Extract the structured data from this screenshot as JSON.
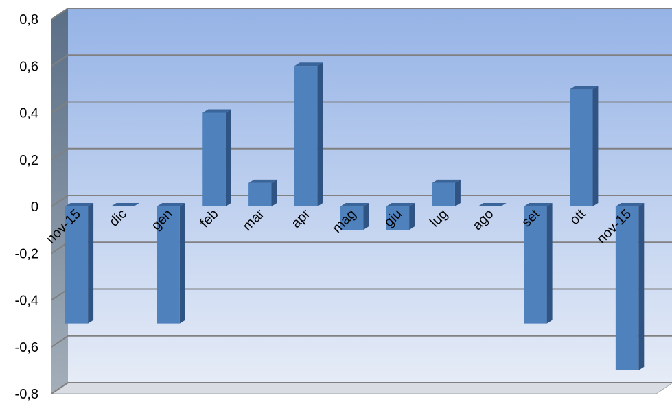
{
  "chart_data": {
    "type": "bar",
    "title": "",
    "xlabel": "",
    "ylabel": "",
    "categories": [
      "nov-15",
      "dic",
      "gen",
      "feb",
      "mar",
      "apr",
      "mag",
      "giu",
      "lug",
      "ago",
      "set",
      "ott",
      "nov-15"
    ],
    "values": [
      -0.5,
      0,
      -0.5,
      0.4,
      0.1,
      0.6,
      -0.1,
      -0.1,
      0.1,
      0,
      -0.5,
      0.5,
      -0.7
    ],
    "ylim": [
      -0.8,
      0.8
    ],
    "yticks": [
      "0,8",
      "0,6",
      "0,4",
      "0,2",
      "0",
      "-0,2",
      "-0,4",
      "-0,6",
      "-0,8"
    ],
    "ytick_values": [
      0.8,
      0.6,
      0.4,
      0.2,
      0,
      -0.2,
      -0.4,
      -0.6,
      -0.8
    ],
    "grid": true,
    "legend": "none",
    "style": "3d-column",
    "colors": {
      "bar_front": "#4f81bd",
      "bar_side": "#2f5383",
      "bar_top": "#3a659b",
      "wall_top": "#95b3e6",
      "wall_bottom": "#e6ecf7",
      "side_wall": "#7f8c99",
      "floor": "#d9dde3",
      "gridline": "#808080"
    }
  }
}
